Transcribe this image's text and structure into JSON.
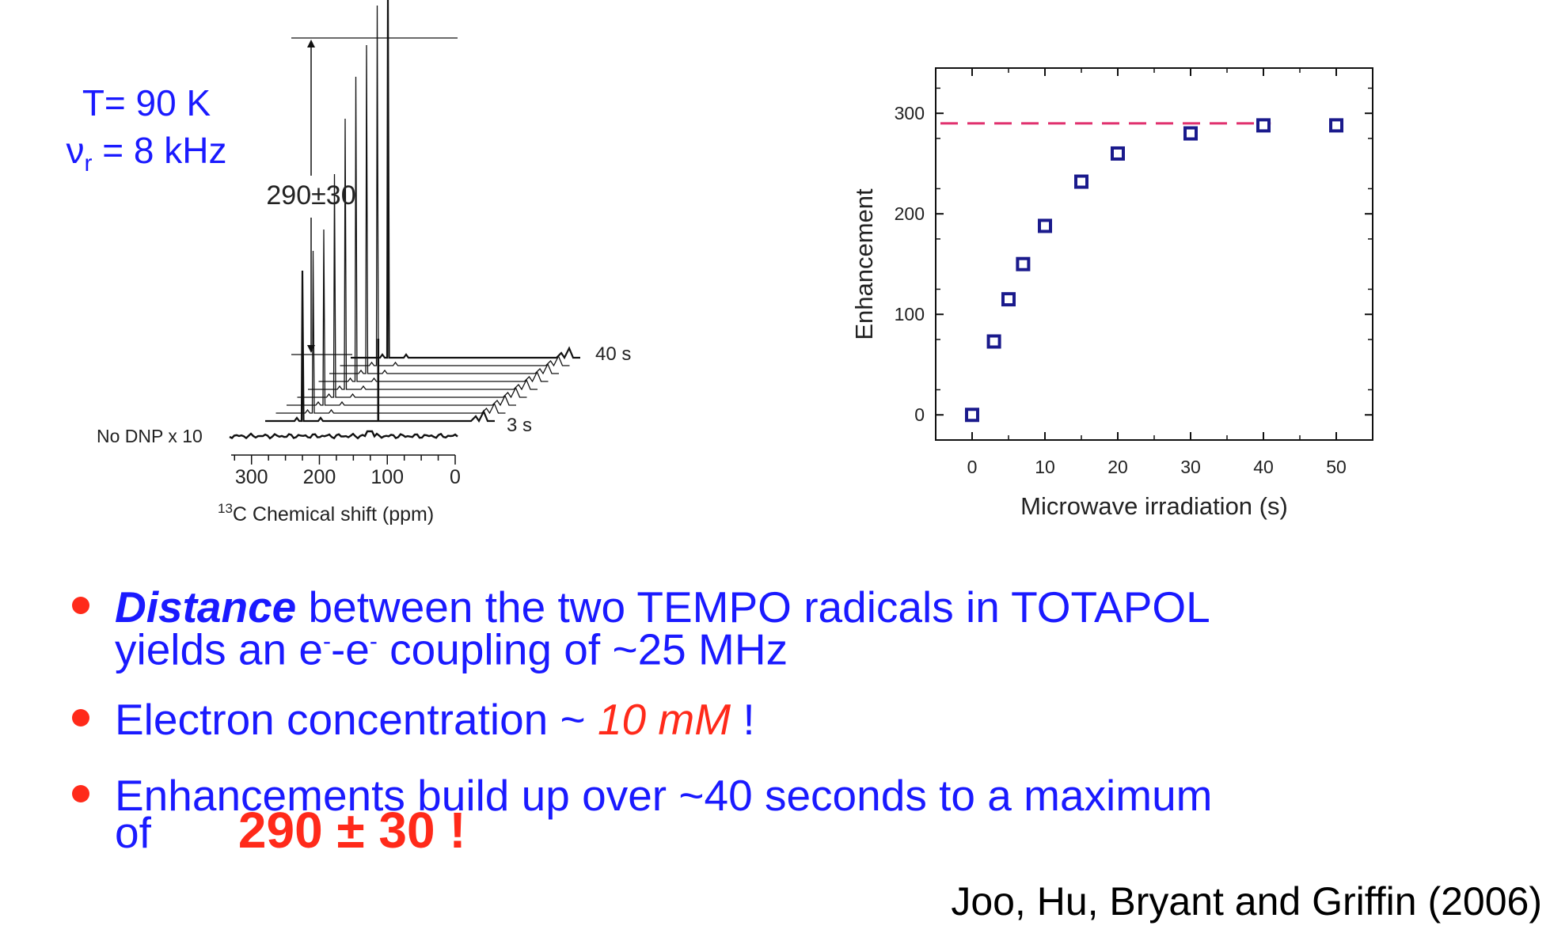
{
  "conditions": {
    "temperature": "T= 90 K",
    "nu_symbol": "ν",
    "nu_sub": "r",
    "nu_rest": " = 8 kHz"
  },
  "chart_data": [
    {
      "type": "line",
      "subtype": "stacked-spectra",
      "xlabel_sup": "13",
      "xlabel": "C Chemical shift  (ppm)",
      "x_ticks": [
        300,
        200,
        100,
        0
      ],
      "xlim": [
        330,
        0
      ],
      "no_dnp_label": "No DNP x 10",
      "first_trace_label": "3 s",
      "last_trace_label": "40 s",
      "bracket_label": "290±30",
      "peak_ppm": 125
    },
    {
      "type": "scatter",
      "xlabel": "Microwave irradiation  (s)",
      "ylabel": "Enhancement",
      "xlim": [
        -5,
        55
      ],
      "ylim": [
        -25,
        345
      ],
      "x_ticks": [
        0,
        10,
        20,
        30,
        40,
        50
      ],
      "y_ticks": [
        0,
        100,
        200,
        300
      ],
      "x": [
        0,
        3,
        5,
        7,
        10,
        15,
        20,
        30,
        40,
        50
      ],
      "y": [
        0,
        73,
        115,
        150,
        188,
        232,
        260,
        280,
        288,
        288
      ],
      "asymptote": 290,
      "asymptote_color": "#e0306e",
      "marker_color": "#1a1a8c"
    }
  ],
  "bullets": [
    {
      "line1_em": "Distance",
      "line1_rest": " between the two TEMPO radicals in TOTAPOL",
      "line2_a": "yields an e",
      "sup1": "-",
      "line2_b": "-e",
      "sup2": "-",
      "line2_c": " coupling of ~25 MHz"
    },
    {
      "text": "Electron concentration ~ ",
      "em": "10 mM",
      "tail": " !"
    },
    {
      "line1": "Enhancements build up over ~40 seconds to a maximum",
      "line2": "of",
      "value": "290 ± 30 !"
    }
  ],
  "citation": "Joo, Hu, Bryant and Griffin  (2006)",
  "colors": {
    "blue_text": "#1a1aff",
    "red_text": "#ff2a1a",
    "bullet": "#ff2a1a"
  }
}
